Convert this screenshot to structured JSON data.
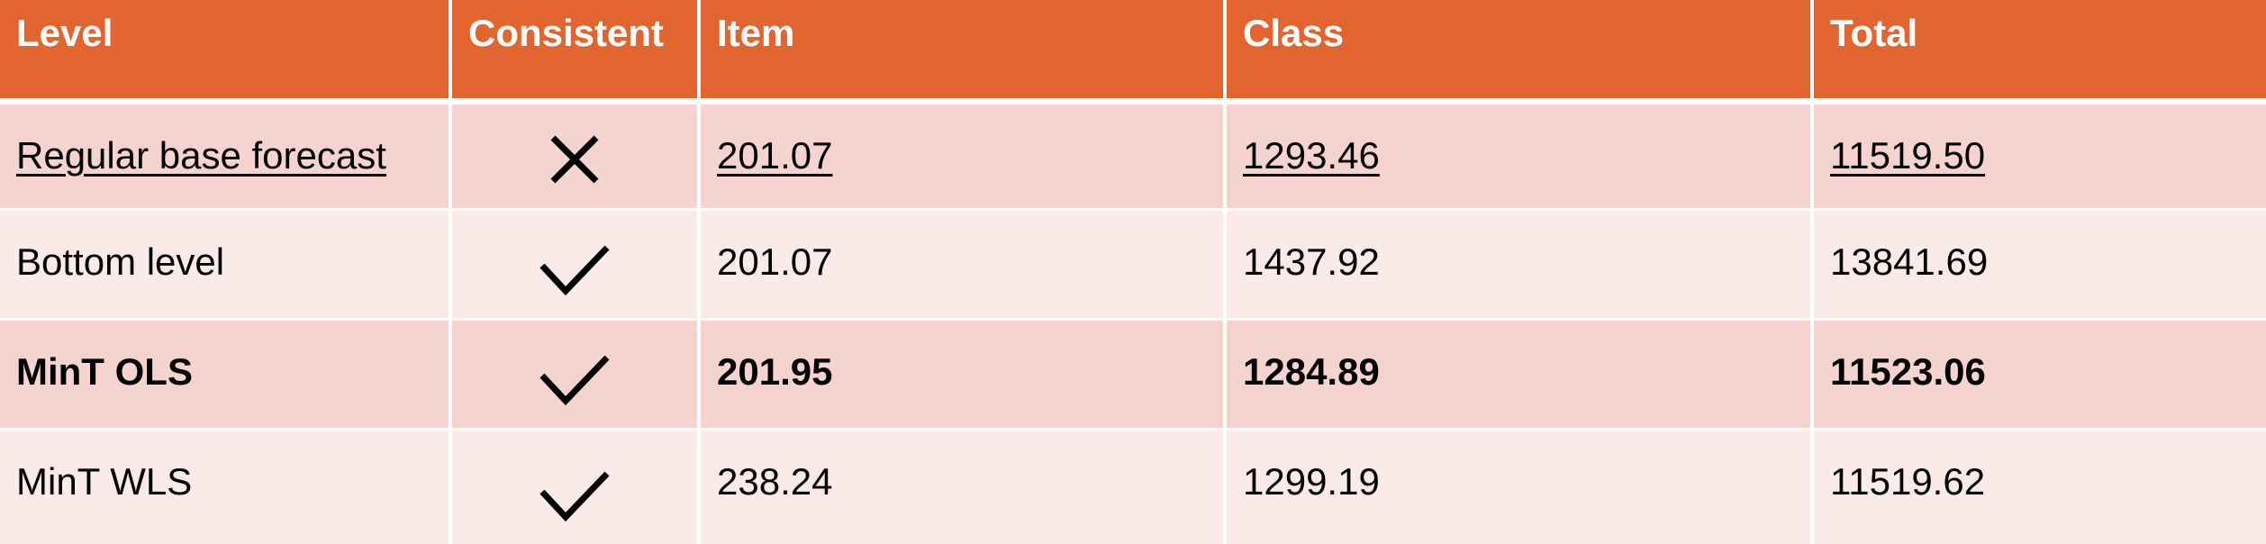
{
  "table": {
    "headers": [
      "Level",
      "Consistent",
      "Item",
      "Class",
      "Total"
    ],
    "rows": [
      {
        "level": "Regular base forecast",
        "consistent": "cross",
        "item": "201.07",
        "class": "1293.46",
        "total": "11519.50",
        "style": "underline"
      },
      {
        "level": "Bottom level",
        "consistent": "check",
        "item": "201.07",
        "class": "1437.92",
        "total": "13841.69",
        "style": "normal"
      },
      {
        "level": "MinT OLS",
        "consistent": "check",
        "item": "201.95",
        "class": "1284.89",
        "total": "11523.06",
        "style": "bold"
      },
      {
        "level": "MinT WLS",
        "consistent": "check",
        "item": "238.24",
        "class": "1299.19",
        "total": "11519.62",
        "style": "normal"
      }
    ]
  },
  "colors": {
    "header_bg": "#e26530",
    "row_dark": "#f5d4cf",
    "row_light": "#faeae8"
  }
}
